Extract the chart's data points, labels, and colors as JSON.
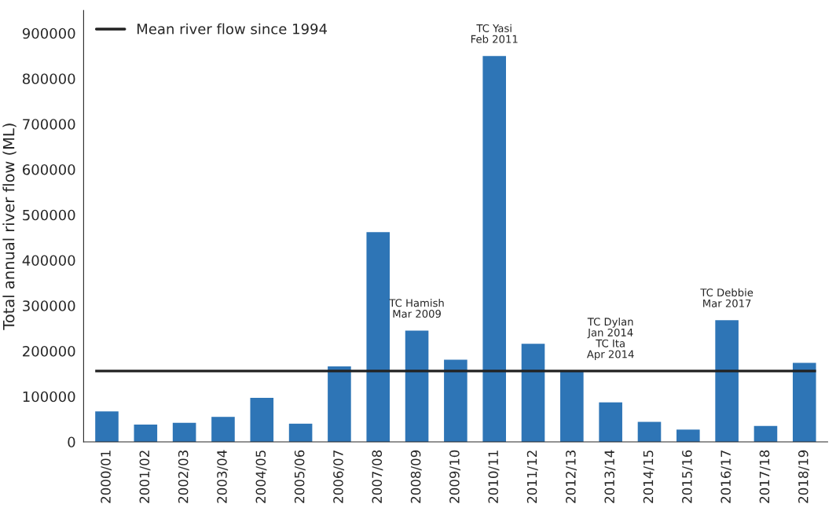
{
  "chart_data": {
    "type": "bar",
    "ylabel": "Total annual river flow (ML)",
    "categories": [
      "2000/01",
      "2001/02",
      "2002/03",
      "2003/04",
      "2004/05",
      "2005/06",
      "2006/07",
      "2007/08",
      "2008/09",
      "2009/10",
      "2010/11",
      "2011/12",
      "2012/13",
      "2013/14",
      "2014/15",
      "2015/16",
      "2016/17",
      "2017/18",
      "2018/19"
    ],
    "values": [
      67000,
      38000,
      42000,
      55000,
      97000,
      40000,
      166000,
      462000,
      245000,
      181000,
      850000,
      216000,
      154000,
      87000,
      44000,
      27000,
      268000,
      35000,
      174000
    ],
    "color": "#2e75b6",
    "ylim": [
      0,
      950000
    ],
    "yticks": [
      0,
      100000,
      200000,
      300000,
      400000,
      500000,
      600000,
      700000,
      800000,
      900000
    ],
    "ref_lines": [
      {
        "axis": "y",
        "value": 156000,
        "label": "Mean river flow since 1994",
        "color": "#222222",
        "line_style": "solid"
      }
    ],
    "annotations": [
      {
        "text": "TC Hamish\nMar 2009",
        "x": "2008/09",
        "y": 245000
      },
      {
        "text": "TC Yasi\nFeb 2011",
        "x": "2010/11",
        "y": 850000
      },
      {
        "text": "TC Dylan\nJan 2014\nTC Ita\nApr 2014",
        "x": "2013/14",
        "y": 156000
      },
      {
        "text": "TC Debbie\nMar 2017",
        "x": "2016/17",
        "y": 268000
      }
    ],
    "legend": "top left",
    "grid": false
  }
}
